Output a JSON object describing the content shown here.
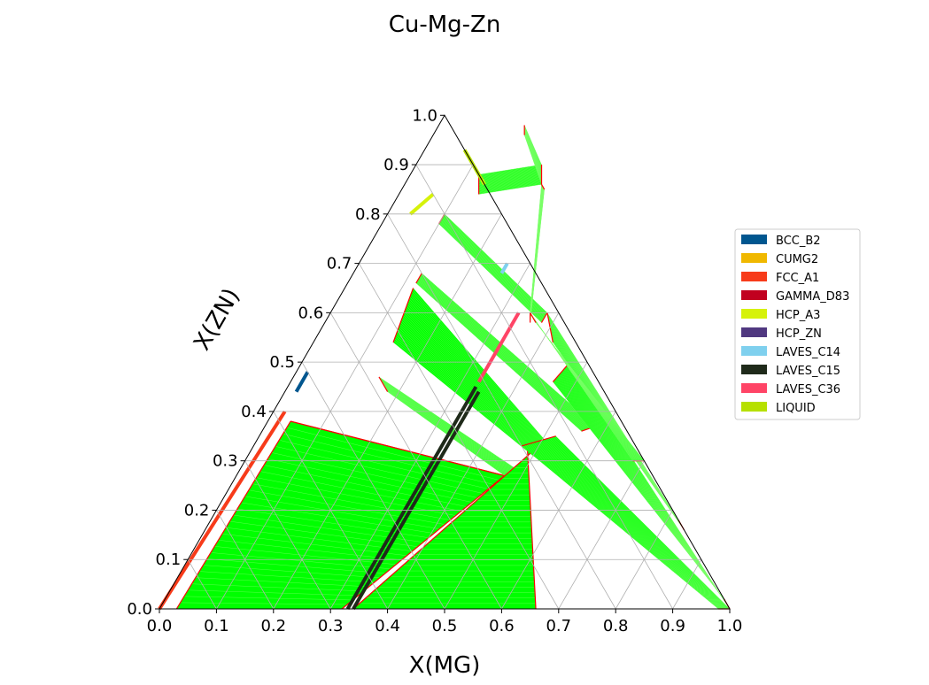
{
  "chart_data": {
    "type": "ternary",
    "title": "Cu-Mg-Zn",
    "xlabel": "X(MG)",
    "ylabel": "X(ZN)",
    "ticks": [
      "0.0",
      "0.1",
      "0.2",
      "0.3",
      "0.4",
      "0.5",
      "0.6",
      "0.7",
      "0.8",
      "0.9",
      "1.0"
    ],
    "grid": true,
    "legend_position": "right",
    "legend": [
      {
        "name": "BCC_B2",
        "color": "#00568f"
      },
      {
        "name": "CUMG2",
        "color": "#f0b800"
      },
      {
        "name": "FCC_A1",
        "color": "#f73b1a"
      },
      {
        "name": "GAMMA_D83",
        "color": "#c1001f"
      },
      {
        "name": "HCP_A3",
        "color": "#d6f20a"
      },
      {
        "name": "HCP_ZN",
        "color": "#503880"
      },
      {
        "name": "LAVES_C14",
        "color": "#7fd0ee"
      },
      {
        "name": "LAVES_C15",
        "color": "#1f2a1a"
      },
      {
        "name": "LAVES_C36",
        "color": "#ff4466"
      },
      {
        "name": "LIQUID",
        "color": "#b6e000"
      }
    ],
    "tie_line_color": "#00ff00",
    "boundary_color": "#ff0000",
    "two_phase_regions": [
      {
        "a": [
          0.03,
          0.0
        ],
        "b": [
          0.04,
          0.38
        ],
        "c": [
          0.47,
          0.27
        ],
        "d": [
          0.32,
          0.0
        ]
      },
      {
        "a": [
          0.04,
          0.38
        ],
        "b": [
          0.47,
          0.27
        ],
        "c": [
          0.47,
          0.27
        ],
        "d": [
          0.04,
          0.38
        ]
      },
      {
        "a": [
          0.18,
          0.44
        ],
        "b": [
          0.15,
          0.47
        ],
        "c": [
          0.49,
          0.28
        ],
        "d": [
          0.47,
          0.27
        ]
      },
      {
        "a": [
          0.14,
          0.54
        ],
        "b": [
          0.12,
          0.65
        ],
        "c": [
          0.52,
          0.33
        ],
        "d": [
          0.5,
          0.31
        ]
      },
      {
        "a": [
          0.12,
          0.66
        ],
        "b": [
          0.12,
          0.68
        ],
        "c": [
          0.58,
          0.37
        ],
        "d": [
          0.56,
          0.36
        ]
      },
      {
        "a": [
          0.1,
          0.78
        ],
        "b": [
          0.1,
          0.8
        ],
        "c": [
          0.38,
          0.6
        ],
        "d": [
          0.38,
          0.58
        ]
      },
      {
        "a": [
          0.12,
          0.88
        ],
        "b": [
          0.14,
          0.84
        ],
        "c": [
          0.24,
          0.86
        ],
        "d": [
          0.22,
          0.9
        ]
      },
      {
        "a": [
          0.15,
          0.98
        ],
        "b": [
          0.16,
          0.96
        ],
        "c": [
          0.24,
          0.86
        ],
        "d": [
          0.22,
          0.9
        ]
      },
      {
        "a": [
          0.34,
          0.0
        ],
        "b": [
          0.5,
          0.33
        ],
        "c": [
          0.48,
          0.33
        ],
        "d": [
          0.66,
          0.0
        ]
      },
      {
        "a": [
          0.5,
          0.33
        ],
        "b": [
          0.52,
          0.35
        ],
        "c": [
          0.5,
          0.32
        ],
        "d": [
          0.6,
          0.27
        ]
      },
      {
        "a": [
          0.47,
          0.33
        ],
        "b": [
          0.52,
          0.35
        ],
        "c": [
          1.0,
          0.0
        ],
        "d": [
          0.98,
          0.0
        ]
      },
      {
        "a": [
          0.46,
          0.46
        ],
        "b": [
          0.47,
          0.5
        ],
        "c": [
          1.0,
          0.0
        ],
        "d": [
          0.98,
          0.02
        ]
      },
      {
        "a": [
          0.38,
          0.6
        ],
        "b": [
          0.42,
          0.54
        ],
        "c": [
          0.84,
          0.16
        ],
        "d": [
          0.82,
          0.18
        ]
      },
      {
        "a": [
          0.24,
          0.86
        ],
        "b": [
          0.25,
          0.85
        ],
        "c": [
          0.36,
          0.58
        ],
        "d": [
          0.35,
          0.6
        ]
      },
      {
        "a": [
          0.35,
          0.6
        ],
        "b": [
          0.37,
          0.58
        ],
        "c": [
          0.7,
          0.3
        ],
        "d": [
          0.68,
          0.3
        ]
      }
    ],
    "compound_lines": [
      {
        "phase": "LAVES_C15",
        "from": [
          0.33,
          0.0
        ],
        "to": [
          0.33,
          0.45
        ]
      },
      {
        "phase": "LAVES_C15",
        "from": [
          0.34,
          0.0
        ],
        "to": [
          0.34,
          0.44
        ]
      },
      {
        "phase": "LAVES_C36",
        "from": [
          0.33,
          0.46
        ],
        "to": [
          0.33,
          0.6
        ]
      },
      {
        "phase": "LAVES_C14",
        "from": [
          0.26,
          0.68
        ],
        "to": [
          0.26,
          0.7
        ]
      },
      {
        "phase": "BCC_B2",
        "from": [
          0.02,
          0.44
        ],
        "to": [
          0.02,
          0.48
        ]
      },
      {
        "phase": "HCP_A3",
        "from": [
          0.04,
          0.8
        ],
        "to": [
          0.06,
          0.84
        ]
      },
      {
        "phase": "LIQUID",
        "from": [
          0.13,
          0.87
        ],
        "to": [
          0.07,
          0.93
        ]
      },
      {
        "phase": "HCP_A3",
        "from": [
          0.13,
          0.87
        ],
        "to": [
          0.14,
          0.86
        ]
      },
      {
        "phase": "FCC_A1",
        "from": [
          0.0,
          0.0
        ],
        "to": [
          0.02,
          0.4
        ]
      }
    ]
  }
}
